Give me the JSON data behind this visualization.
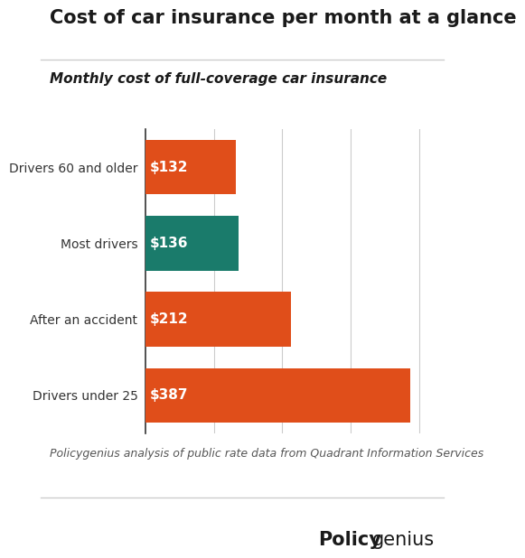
{
  "title": "Cost of car insurance per month at a glance",
  "subtitle": "Monthly cost of full-coverage car insurance",
  "categories": [
    "Drivers under 25",
    "After an accident",
    "Most drivers",
    "Drivers 60 and older"
  ],
  "values": [
    387,
    212,
    136,
    132
  ],
  "labels": [
    "$387",
    "$212",
    "$136",
    "$132"
  ],
  "bar_colors": [
    "#E04E1A",
    "#E04E1A",
    "#1A7B6B",
    "#E04E1A"
  ],
  "footnote": "Policygenius analysis of public rate data from Quadrant Information Services",
  "background_color": "#FFFFFF",
  "bar_height": 0.72,
  "xlim": [
    0,
    430
  ],
  "label_fontsize": 11,
  "title_fontsize": 15,
  "subtitle_fontsize": 11,
  "category_fontsize": 10,
  "footnote_fontsize": 9,
  "brand_fontsize": 15,
  "label_color": "#FFFFFF",
  "category_color": "#333333",
  "title_color": "#1a1a1a",
  "subtitle_color": "#1a1a1a",
  "footnote_color": "#555555",
  "grid_color": "#cccccc",
  "spine_color": "#333333",
  "line_color": "#cccccc"
}
